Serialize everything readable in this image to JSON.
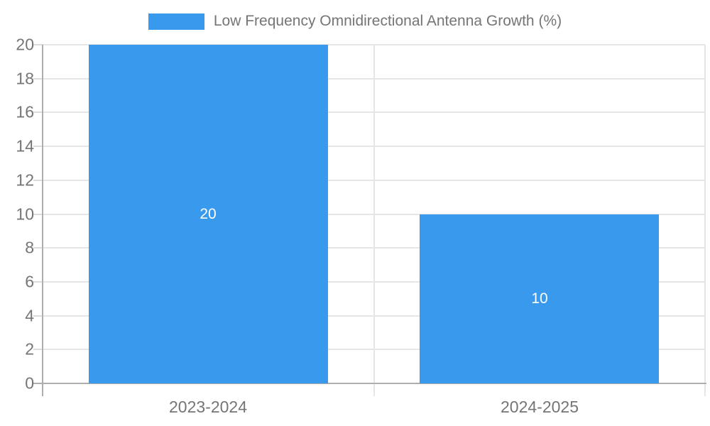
{
  "chart_data": {
    "type": "bar",
    "title": "Low Frequency Omnidirectional Antenna Growth (%)",
    "legend": {
      "position": "top",
      "label": "Low Frequency Omnidirectional Antenna Growth (%)"
    },
    "categories": [
      "2023-2024",
      "2024-2025"
    ],
    "series": [
      {
        "name": "Low Frequency Omnidirectional Antenna Growth (%)",
        "values": [
          20,
          10
        ],
        "data_labels": [
          "20",
          "10"
        ]
      }
    ],
    "xlabel": "",
    "ylabel": "",
    "ylim": [
      0,
      20
    ],
    "yticks": [
      0,
      2,
      4,
      6,
      8,
      10,
      12,
      14,
      16,
      18,
      20
    ],
    "grid": true,
    "colors": {
      "bar": "#3999ec",
      "bar_value_label": "#ffffff",
      "grid": "#e6e6e6",
      "axis": "#aeaeae",
      "tick": "#dcdcdc",
      "text": "#757575"
    }
  }
}
